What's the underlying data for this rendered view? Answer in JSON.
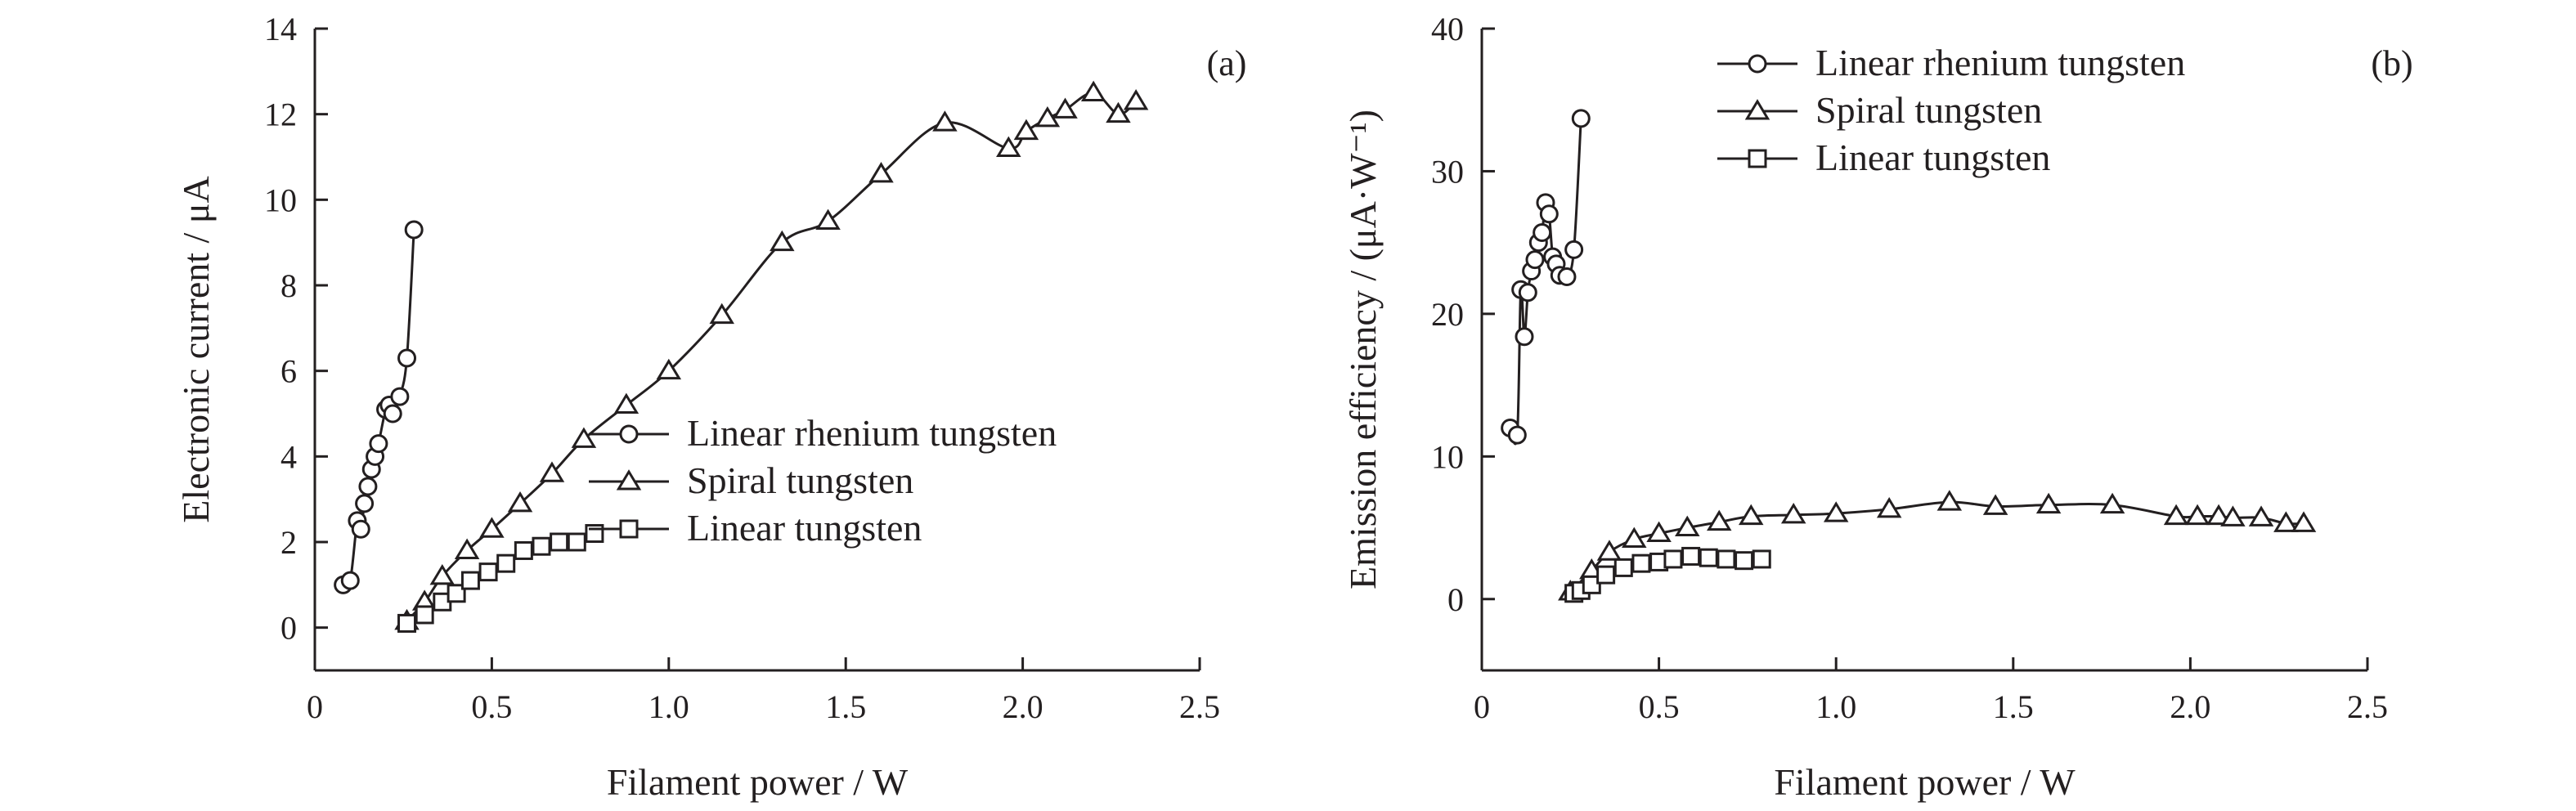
{
  "chart_data": [
    {
      "id": "a",
      "type": "line",
      "panel_label": "(a)",
      "xlabel": "Filament power / W",
      "ylabel": "Electronic current / μA",
      "xlim": [
        0,
        2.5
      ],
      "ylim": [
        -1,
        14
      ],
      "xticks": [
        "0",
        "0.5",
        "1.0",
        "1.5",
        "2.0",
        "2.5"
      ],
      "xtick_values": [
        0,
        0.5,
        1.0,
        1.5,
        2.0,
        2.5
      ],
      "yticks": [
        "0",
        "2",
        "4",
        "6",
        "8",
        "10",
        "12",
        "14"
      ],
      "ytick_values": [
        0,
        2,
        4,
        6,
        8,
        10,
        12,
        14
      ],
      "legend_position": "right-middle",
      "series": [
        {
          "name": "Linear rhenium tungsten",
          "marker": "circle",
          "x": [
            0.08,
            0.1,
            0.12,
            0.13,
            0.14,
            0.15,
            0.16,
            0.17,
            0.18,
            0.2,
            0.21,
            0.22,
            0.24,
            0.26,
            0.28
          ],
          "y": [
            1.0,
            1.1,
            2.5,
            2.3,
            2.9,
            3.3,
            3.7,
            4.0,
            4.3,
            5.1,
            5.2,
            5.0,
            5.4,
            6.3,
            9.3
          ]
        },
        {
          "name": "Spiral tungsten",
          "marker": "triangle",
          "x": [
            0.26,
            0.31,
            0.36,
            0.43,
            0.5,
            0.58,
            0.67,
            0.76,
            0.88,
            1.0,
            1.15,
            1.32,
            1.45,
            1.6,
            1.78,
            1.96,
            2.01,
            2.07,
            2.12,
            2.2,
            2.27,
            2.32
          ],
          "y": [
            0.15,
            0.6,
            1.2,
            1.8,
            2.3,
            2.9,
            3.6,
            4.4,
            5.2,
            6.0,
            7.3,
            9.0,
            9.5,
            10.6,
            11.8,
            11.2,
            11.6,
            11.9,
            12.1,
            12.5,
            12.0,
            12.3
          ]
        },
        {
          "name": "Linear tungsten",
          "marker": "square",
          "x": [
            0.26,
            0.31,
            0.36,
            0.4,
            0.44,
            0.49,
            0.54,
            0.59,
            0.64,
            0.69,
            0.74,
            0.79
          ],
          "y": [
            0.1,
            0.3,
            0.6,
            0.8,
            1.1,
            1.3,
            1.5,
            1.8,
            1.9,
            2.0,
            2.0,
            2.2
          ]
        }
      ]
    },
    {
      "id": "b",
      "type": "line",
      "panel_label": "(b)",
      "xlabel": "Filament power / W",
      "ylabel": "Emission efficiency / (μA·W⁻¹)",
      "xlim": [
        0,
        2.5
      ],
      "ylim": [
        -5,
        40
      ],
      "xticks": [
        "0",
        "0.5",
        "1.0",
        "1.5",
        "2.0",
        "2.5"
      ],
      "xtick_values": [
        0,
        0.5,
        1.0,
        1.5,
        2.0,
        2.5
      ],
      "yticks": [
        "0",
        "10",
        "20",
        "30",
        "40"
      ],
      "ytick_values": [
        0,
        10,
        20,
        30,
        40
      ],
      "legend_position": "top-right",
      "series": [
        {
          "name": "Linear rhenium tungsten",
          "marker": "circle",
          "x": [
            0.08,
            0.1,
            0.11,
            0.12,
            0.13,
            0.14,
            0.15,
            0.16,
            0.17,
            0.18,
            0.19,
            0.2,
            0.21,
            0.22,
            0.24,
            0.26,
            0.28
          ],
          "y": [
            12.0,
            11.5,
            21.7,
            18.4,
            21.5,
            23.0,
            23.8,
            25.0,
            25.7,
            27.8,
            27.0,
            24.0,
            23.5,
            22.7,
            22.6,
            24.5,
            33.7
          ]
        },
        {
          "name": "Spiral tungsten",
          "marker": "triangle",
          "x": [
            0.25,
            0.31,
            0.36,
            0.43,
            0.5,
            0.58,
            0.67,
            0.76,
            0.88,
            1.0,
            1.15,
            1.32,
            1.45,
            1.6,
            1.78,
            1.96,
            2.02,
            2.08,
            2.12,
            2.2,
            2.27,
            2.32
          ],
          "y": [
            0.5,
            2.0,
            3.3,
            4.2,
            4.6,
            5.0,
            5.4,
            5.8,
            5.9,
            6.0,
            6.3,
            6.8,
            6.5,
            6.6,
            6.6,
            5.8,
            5.8,
            5.8,
            5.7,
            5.7,
            5.3,
            5.3
          ]
        },
        {
          "name": "Linear tungsten",
          "marker": "square",
          "x": [
            0.26,
            0.28,
            0.31,
            0.35,
            0.4,
            0.45,
            0.5,
            0.54,
            0.59,
            0.64,
            0.69,
            0.74,
            0.79
          ],
          "y": [
            0.4,
            0.6,
            1.0,
            1.7,
            2.2,
            2.5,
            2.6,
            2.8,
            3.0,
            2.9,
            2.8,
            2.7,
            2.8
          ]
        }
      ]
    }
  ]
}
